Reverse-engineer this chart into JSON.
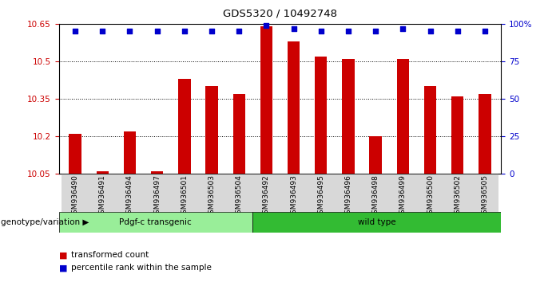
{
  "title": "GDS5320 / 10492748",
  "samples": [
    "GSM936490",
    "GSM936491",
    "GSM936494",
    "GSM936497",
    "GSM936501",
    "GSM936503",
    "GSM936504",
    "GSM936492",
    "GSM936493",
    "GSM936495",
    "GSM936496",
    "GSM936498",
    "GSM936499",
    "GSM936500",
    "GSM936502",
    "GSM936505"
  ],
  "bar_values": [
    10.21,
    10.06,
    10.22,
    10.06,
    10.43,
    10.4,
    10.37,
    10.64,
    10.58,
    10.52,
    10.51,
    10.2,
    10.51,
    10.4,
    10.36,
    10.37
  ],
  "percentile_values": [
    95,
    95,
    95,
    95,
    95,
    95,
    95,
    99,
    97,
    95,
    95,
    95,
    97,
    95,
    95,
    95
  ],
  "bar_base": 10.05,
  "ylim_left": [
    10.05,
    10.65
  ],
  "ylim_right": [
    0,
    100
  ],
  "yticks_left": [
    10.05,
    10.2,
    10.35,
    10.5,
    10.65
  ],
  "ytick_labels_left": [
    "10.05",
    "10.2",
    "10.35",
    "10.5",
    "10.65"
  ],
  "yticks_right": [
    0,
    25,
    50,
    75,
    100
  ],
  "ytick_labels_right": [
    "0",
    "25",
    "50",
    "75",
    "100%"
  ],
  "grid_lines": [
    10.2,
    10.35,
    10.5
  ],
  "bar_color": "#cc0000",
  "percentile_color": "#0000cc",
  "group1_label": "Pdgf-c transgenic",
  "group2_label": "wild type",
  "group1_count": 7,
  "group2_count": 9,
  "group1_color": "#99ee99",
  "group2_color": "#33bb33",
  "genotype_label": "genotype/variation",
  "legend_bar_label": "transformed count",
  "legend_pct_label": "percentile rank within the sample",
  "tick_label_color_left": "#cc0000",
  "tick_label_color_right": "#0000cc",
  "plot_bg": "#ffffff",
  "tick_area_bg": "#d8d8d8"
}
